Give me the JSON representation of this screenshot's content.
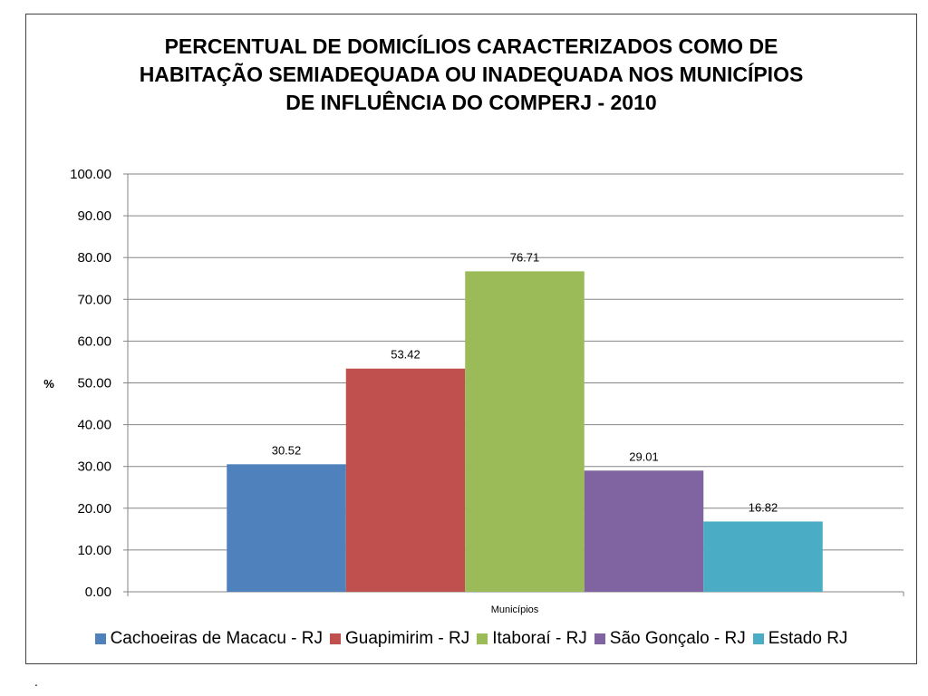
{
  "chart_data": {
    "type": "bar",
    "title_lines": [
      "PERCENTUAL DE DOMICÍLIOS  CARACTERIZADOS COMO DE",
      "HABITAÇÃO SEMIADEQUADA OU INADEQUADA  NOS MUNICÍPIOS",
      "DE INFLUÊNCIA DO COMPERJ - 2010"
    ],
    "xlabel": "Municípios",
    "ylabel": "%",
    "ylim": [
      0,
      100
    ],
    "ytick_step": 10,
    "ytick_labels": [
      "0.00",
      "10.00",
      "20.00",
      "30.00",
      "40.00",
      "50.00",
      "60.00",
      "70.00",
      "80.00",
      "90.00",
      "100.00"
    ],
    "grid": true,
    "legend_position": "bottom",
    "series": [
      {
        "name": "Cachoeiras de Macacu - RJ",
        "value": 30.52,
        "label": "30.52",
        "color": "#4F81BD"
      },
      {
        "name": "Guapimirim - RJ",
        "value": 53.42,
        "label": "53.42",
        "color": "#C0504D"
      },
      {
        "name": "Itaboraí - RJ",
        "value": 76.71,
        "label": "76.71",
        "color": "#9BBB59"
      },
      {
        "name": "São Gonçalo - RJ",
        "value": 29.01,
        "label": "29.01",
        "color": "#8064A2"
      },
      {
        "name": "Estado RJ",
        "value": 16.82,
        "label": "16.82",
        "color": "#4BACC6"
      }
    ]
  },
  "footnote": "."
}
